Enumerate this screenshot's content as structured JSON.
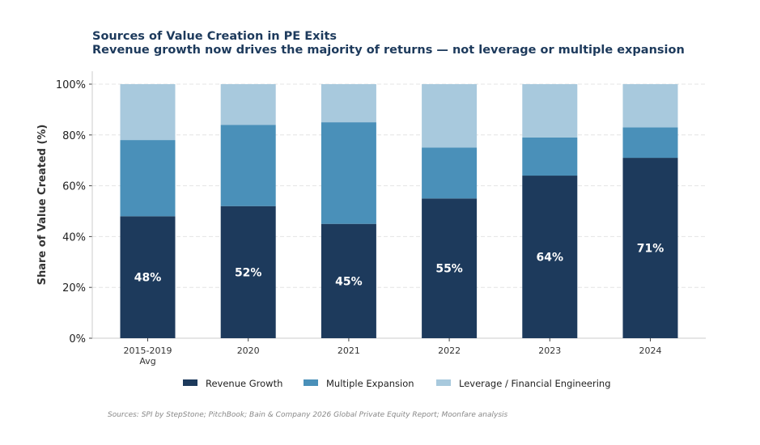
{
  "chart_data": {
    "type": "bar",
    "stacked": true,
    "title": "Sources of Value Creation in PE Exits",
    "subtitle": "Revenue growth now drives the majority of returns — not leverage or multiple expansion",
    "xlabel": "",
    "ylabel": "Share of Value Created (%)",
    "ylim": [
      0,
      100
    ],
    "yticks": [
      "0%",
      "20%",
      "40%",
      "60%",
      "80%",
      "100%"
    ],
    "grid": true,
    "categories": [
      [
        "2015-2019",
        "Avg"
      ],
      [
        "2020"
      ],
      [
        "2021"
      ],
      [
        "2022"
      ],
      [
        "2023"
      ],
      [
        "2024"
      ]
    ],
    "series": [
      {
        "name": "Revenue Growth",
        "color": "#1d3a5c",
        "values": [
          48,
          52,
          45,
          55,
          64,
          71
        ]
      },
      {
        "name": "Multiple Expansion",
        "color": "#4a90b9",
        "values": [
          30,
          32,
          40,
          20,
          15,
          12
        ]
      },
      {
        "name": "Leverage / Financial Engineering",
        "color": "#a8c9dd",
        "values": [
          22,
          16,
          15,
          25,
          21,
          17
        ]
      }
    ],
    "data_labels": [
      "48%",
      "52%",
      "45%",
      "55%",
      "64%",
      "71%"
    ],
    "legend_position": "bottom-center",
    "source": "Sources: SPI by StepStone; PitchBook; Bain & Company 2026 Global Private Equity Report; Moonfare analysis"
  }
}
